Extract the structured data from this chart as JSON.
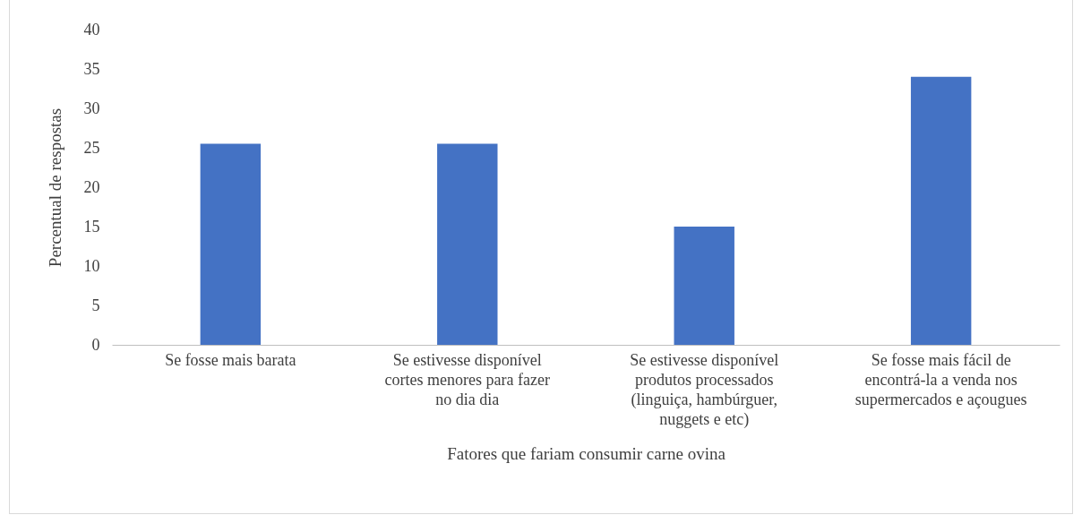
{
  "chart_data": {
    "type": "bar",
    "xlabel": "Fatores que fariam consumir carne ovina",
    "ylabel": "Percentual de respostas",
    "categories": [
      "Se fosse mais barata",
      "Se estivesse disponível cortes menores para fazer no dia dia",
      "Se estivesse disponível produtos processados (linguiça, hambúrguer, nuggets e etc)",
      "Se fosse mais fácil de encontrá-la a venda nos supermercados e açougues"
    ],
    "values": [
      25.5,
      25.5,
      15,
      34
    ],
    "color": "#4472c4",
    "ylim": [
      0,
      40
    ],
    "yticks": [
      0,
      5,
      10,
      15,
      20,
      25,
      30,
      35,
      40
    ],
    "grid": false
  }
}
